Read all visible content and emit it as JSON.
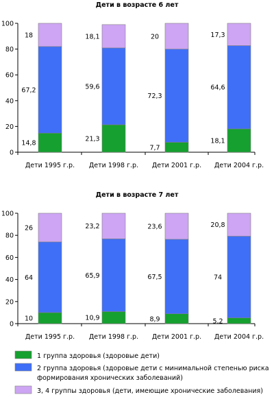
{
  "colors": {
    "group1": "#15a02f",
    "group2": "#3f6ff7",
    "group34": "#cda5f4"
  },
  "chart_data": [
    {
      "type": "bar",
      "stacked": true,
      "title": "Дети в возрасте 6 лет",
      "categories": [
        "Дети 1995 г.р.",
        "Дети 1998 г.р.",
        "Дети 2001 г.р.",
        "Дети 2004 г.р."
      ],
      "ylim": [
        0,
        100
      ],
      "yticks": [
        "0",
        "20",
        "40",
        "60",
        "80",
        "100"
      ],
      "series": [
        {
          "key": "group1",
          "values": [
            14.8,
            21.3,
            7.7,
            18.1
          ],
          "labels": [
            "14,8",
            "21,3",
            "7,7",
            "18,1"
          ]
        },
        {
          "key": "group2",
          "values": [
            67.2,
            59.6,
            72.3,
            64.6
          ],
          "labels": [
            "67,2",
            "59,6",
            "72,3",
            "64,6"
          ]
        },
        {
          "key": "group34",
          "values": [
            18,
            18.1,
            20,
            17.3
          ],
          "labels": [
            "18",
            "18,1",
            "20",
            "17,3"
          ]
        }
      ]
    },
    {
      "type": "bar",
      "stacked": true,
      "title": "Дети в возрасте 7 лет",
      "categories": [
        "Дети 1995 г.р.",
        "Дети 1998 г.р.",
        "Дети 2001 г.р.",
        "Дети 2004 г.р."
      ],
      "ylim": [
        0,
        100
      ],
      "yticks": [
        "0",
        "20",
        "40",
        "60",
        "80",
        "100"
      ],
      "series": [
        {
          "key": "group1",
          "values": [
            10,
            10.9,
            8.9,
            5.2
          ],
          "labels": [
            "10",
            "10,9",
            "8,9",
            "5,2"
          ]
        },
        {
          "key": "group2",
          "values": [
            64,
            65.9,
            67.5,
            74
          ],
          "labels": [
            "64",
            "65,9",
            "67,5",
            "74"
          ]
        },
        {
          "key": "group34",
          "values": [
            26,
            23.2,
            23.6,
            20.8
          ],
          "labels": [
            "26",
            "23,2",
            "23,6",
            "20,8"
          ]
        }
      ]
    }
  ],
  "legend": [
    {
      "key": "group1",
      "lines": [
        "1 группа здоровья (здоровые дети)"
      ]
    },
    {
      "key": "group2",
      "lines": [
        "2 группа здоровья (здоровые дети с минимальной степенью риска",
        "формирования хронических заболеваний)"
      ]
    },
    {
      "key": "group34",
      "lines": [
        "3, 4 группы здоровья (дети, имеющие хронические заболевания)"
      ]
    }
  ]
}
